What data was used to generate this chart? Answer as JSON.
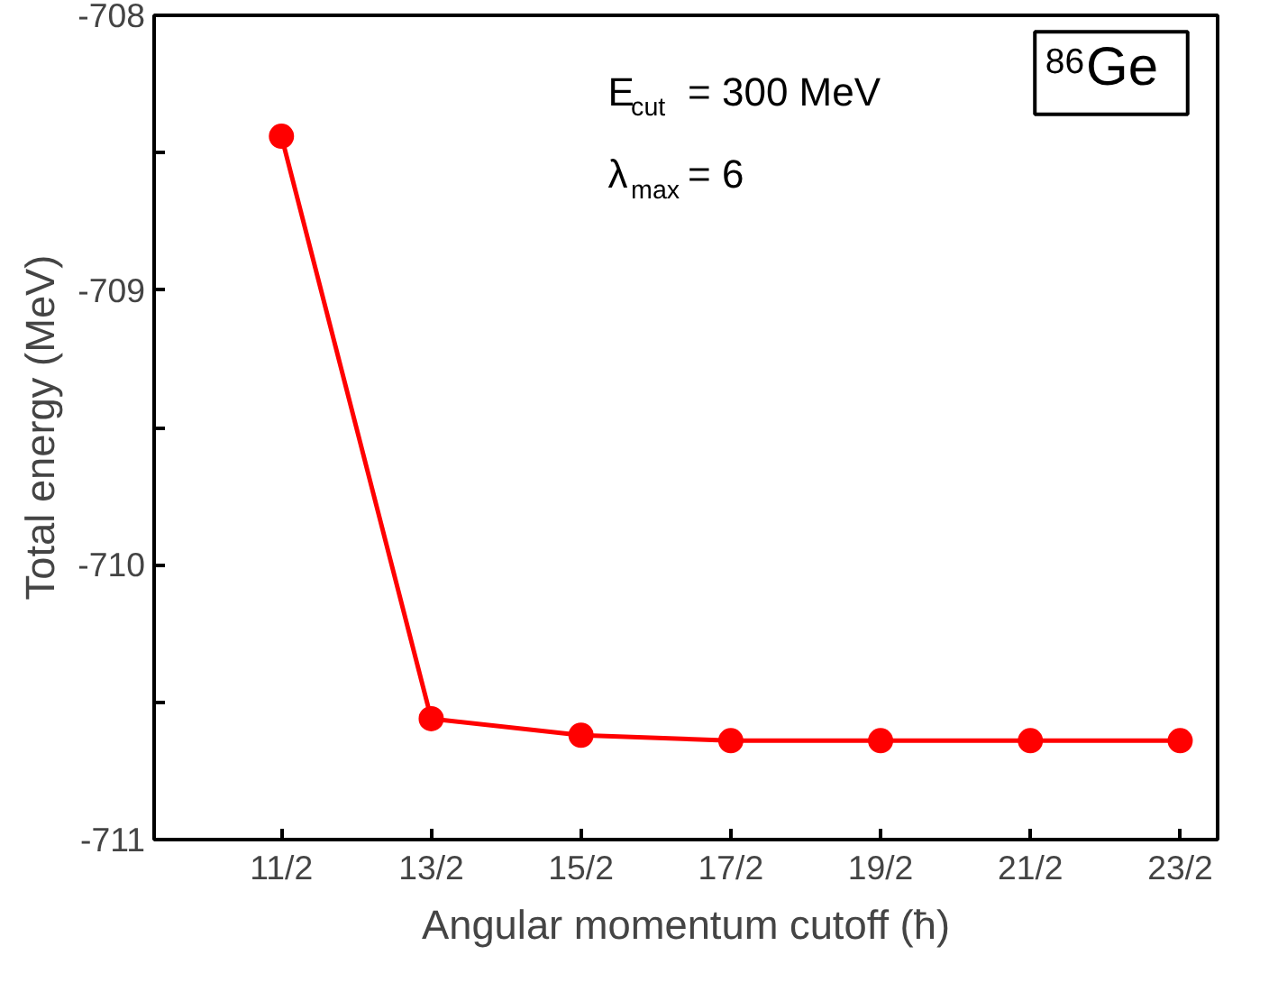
{
  "chart_data": {
    "type": "line",
    "xlabel": "Angular momentum cutoff (ħ)",
    "ylabel": "Total energy (MeV)",
    "categories": [
      "11/2",
      "13/2",
      "15/2",
      "17/2",
      "19/2",
      "21/2",
      "23/2"
    ],
    "series": [
      {
        "color": "#ff0000",
        "values": [
          -708.44,
          -710.56,
          -710.62,
          -710.64,
          -710.64,
          -710.64,
          -710.64
        ]
      }
    ],
    "ylim": [
      -711,
      -708
    ],
    "yticks": [
      -711,
      {
        "value": -710.5,
        "label": null
      },
      -710,
      {
        "value": -709.5,
        "label": null
      },
      -709,
      {
        "value": -708.5,
        "label": null
      },
      -708
    ],
    "marker": "circle",
    "line_style": "solid",
    "grid": false,
    "annotations": [
      "E$_{cut}$ = 300 MeV",
      "λ$_{max}$ = 6",
      "$^{86}$Ge"
    ]
  }
}
